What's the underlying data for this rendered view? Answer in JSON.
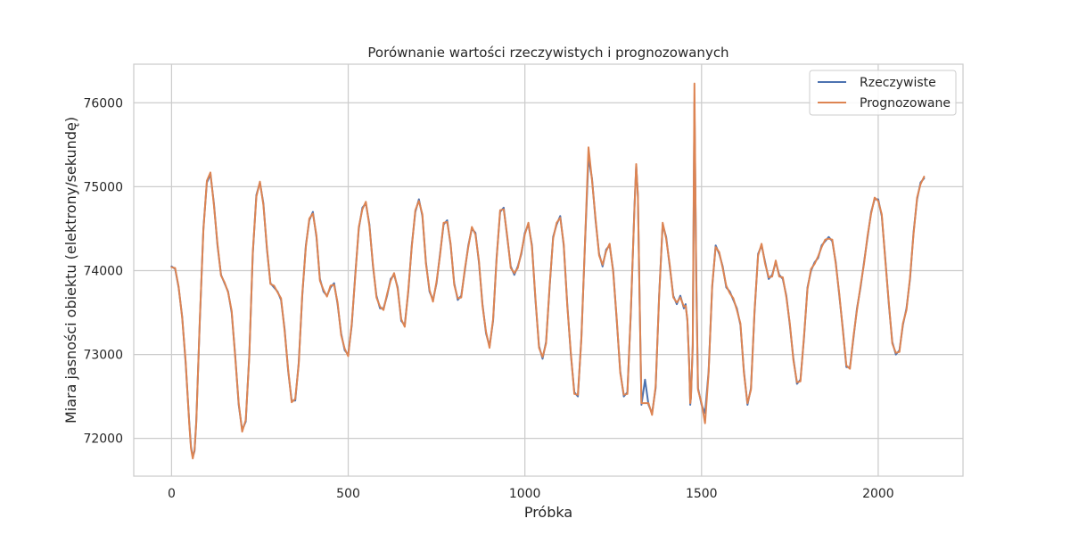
{
  "chart_data": {
    "type": "line",
    "title": "Porównanie wartości rzeczywistych i prognozowanych",
    "xlabel": "Próbka",
    "ylabel": "Miara jasności obiektu (elektrony/sekundę)",
    "xlim": [
      -107,
      2240
    ],
    "ylim": [
      71550,
      76460
    ],
    "xticks": [
      0,
      500,
      1000,
      1500,
      2000
    ],
    "xtick_labels": [
      "0",
      "500",
      "1000",
      "1500",
      "2000"
    ],
    "yticks": [
      72000,
      73000,
      74000,
      75000,
      76000
    ],
    "ytick_labels": [
      "72000",
      "73000",
      "74000",
      "75000",
      "76000"
    ],
    "grid": true,
    "legend_position": "top-right",
    "colors": {
      "actual": "#4c72b0",
      "predicted": "#dd8452",
      "grid": "#cccccc",
      "frame": "#cccccc"
    },
    "series": [
      {
        "name": "Rzeczywiste",
        "color": "#4c72b0",
        "x": [
          0,
          10,
          20,
          30,
          40,
          50,
          55,
          60,
          65,
          70,
          80,
          90,
          100,
          110,
          120,
          130,
          140,
          150,
          160,
          170,
          180,
          190,
          200,
          210,
          220,
          230,
          240,
          250,
          260,
          270,
          280,
          290,
          300,
          310,
          320,
          330,
          340,
          350,
          360,
          370,
          380,
          390,
          400,
          410,
          420,
          430,
          440,
          450,
          460,
          470,
          480,
          490,
          500,
          510,
          520,
          530,
          540,
          550,
          560,
          570,
          580,
          590,
          600,
          610,
          620,
          630,
          640,
          650,
          660,
          670,
          680,
          690,
          700,
          710,
          720,
          730,
          740,
          750,
          760,
          770,
          780,
          790,
          800,
          810,
          820,
          830,
          840,
          850,
          860,
          870,
          880,
          890,
          900,
          910,
          920,
          930,
          940,
          950,
          960,
          970,
          980,
          990,
          1000,
          1010,
          1020,
          1030,
          1040,
          1050,
          1060,
          1070,
          1080,
          1090,
          1100,
          1110,
          1120,
          1130,
          1140,
          1150,
          1160,
          1170,
          1180,
          1190,
          1200,
          1210,
          1220,
          1230,
          1240,
          1250,
          1260,
          1270,
          1280,
          1290,
          1300,
          1310,
          1315,
          1320,
          1325,
          1330,
          1340,
          1350,
          1360,
          1370,
          1380,
          1390,
          1400,
          1410,
          1420,
          1430,
          1440,
          1450,
          1455,
          1460,
          1465,
          1468,
          1470,
          1475,
          1480,
          1485,
          1490,
          1500,
          1510,
          1520,
          1530,
          1540,
          1550,
          1560,
          1570,
          1580,
          1590,
          1600,
          1610,
          1620,
          1630,
          1640,
          1650,
          1660,
          1670,
          1680,
          1690,
          1700,
          1710,
          1720,
          1730,
          1740,
          1750,
          1760,
          1770,
          1780,
          1790,
          1800,
          1810,
          1820,
          1830,
          1840,
          1850,
          1860,
          1870,
          1880,
          1890,
          1900,
          1910,
          1920,
          1930,
          1940,
          1950,
          1960,
          1970,
          1980,
          1990,
          2000,
          2010,
          2020,
          2030,
          2040,
          2050,
          2060,
          2070,
          2080,
          2090,
          2100,
          2110,
          2120,
          2130
        ],
        "y": [
          74050,
          74020,
          73800,
          73450,
          72900,
          72200,
          71900,
          71780,
          71850,
          72200,
          73400,
          74500,
          75050,
          75150,
          74800,
          74300,
          73950,
          73850,
          73750,
          73500,
          73000,
          72400,
          72100,
          72200,
          73000,
          74200,
          74900,
          75050,
          74800,
          74250,
          73850,
          73800,
          73750,
          73650,
          73300,
          72800,
          72450,
          72450,
          72900,
          73700,
          74300,
          74600,
          74700,
          74400,
          73900,
          73750,
          73700,
          73800,
          73850,
          73600,
          73250,
          73050,
          73000,
          73350,
          73950,
          74500,
          74750,
          74800,
          74550,
          74050,
          73700,
          73550,
          73550,
          73700,
          73900,
          73950,
          73800,
          73400,
          73350,
          73750,
          74300,
          74700,
          74850,
          74650,
          74100,
          73750,
          73650,
          73850,
          74200,
          74550,
          74600,
          74300,
          73850,
          73650,
          73700,
          74000,
          74300,
          74500,
          74450,
          74100,
          73600,
          73250,
          73100,
          73400,
          74150,
          74700,
          74750,
          74400,
          74050,
          73950,
          74050,
          74200,
          74450,
          74550,
          74300,
          73650,
          73100,
          72950,
          73150,
          73800,
          74400,
          74550,
          74650,
          74300,
          73600,
          73000,
          72550,
          72500,
          73200,
          74300,
          75350,
          75100,
          74600,
          74200,
          74050,
          74250,
          74300,
          74000,
          73400,
          72800,
          72500,
          72550,
          73500,
          74750,
          75250,
          74900,
          73600,
          72400,
          72700,
          72400,
          72300,
          72600,
          73700,
          74550,
          74400,
          74050,
          73700,
          73600,
          73700,
          73550,
          73600,
          73400,
          72900,
          72400,
          72500,
          73100,
          76000,
          74000,
          72600,
          72400,
          72300,
          72800,
          73800,
          74300,
          74200,
          74050,
          73800,
          73750,
          73650,
          73550,
          73350,
          72800,
          72400,
          72600,
          73500,
          74200,
          74300,
          74100,
          73900,
          73950,
          74100,
          73950,
          73900,
          73700,
          73350,
          72950,
          72650,
          72700,
          73200,
          73800,
          74000,
          74100,
          74150,
          74300,
          74350,
          74400,
          74350,
          74100,
          73700,
          73300,
          72850,
          72850,
          73200,
          73550,
          73800,
          74100,
          74400,
          74700,
          74850,
          74850,
          74650,
          74150,
          73600,
          73150,
          73000,
          73050,
          73350,
          73550,
          73900,
          74450,
          74850,
          75050,
          75100
        ]
      },
      {
        "name": "Prognozowane",
        "color": "#dd8452",
        "x": [
          0,
          10,
          20,
          30,
          40,
          50,
          55,
          60,
          65,
          70,
          80,
          90,
          100,
          110,
          120,
          130,
          140,
          150,
          160,
          170,
          180,
          190,
          200,
          210,
          220,
          230,
          240,
          250,
          260,
          270,
          280,
          290,
          300,
          310,
          320,
          330,
          340,
          350,
          360,
          370,
          380,
          390,
          400,
          410,
          420,
          430,
          440,
          450,
          460,
          470,
          480,
          490,
          500,
          510,
          520,
          530,
          540,
          550,
          560,
          570,
          580,
          590,
          600,
          610,
          620,
          630,
          640,
          650,
          660,
          670,
          680,
          690,
          700,
          710,
          720,
          730,
          740,
          750,
          760,
          770,
          780,
          790,
          800,
          810,
          820,
          830,
          840,
          850,
          860,
          870,
          880,
          890,
          900,
          910,
          920,
          930,
          940,
          950,
          960,
          970,
          980,
          990,
          1000,
          1010,
          1020,
          1030,
          1040,
          1050,
          1060,
          1070,
          1080,
          1090,
          1100,
          1110,
          1120,
          1130,
          1140,
          1150,
          1160,
          1170,
          1180,
          1190,
          1200,
          1210,
          1220,
          1230,
          1240,
          1250,
          1260,
          1270,
          1280,
          1290,
          1300,
          1310,
          1315,
          1320,
          1325,
          1330,
          1340,
          1350,
          1360,
          1370,
          1380,
          1390,
          1400,
          1410,
          1420,
          1430,
          1440,
          1450,
          1455,
          1460,
          1465,
          1468,
          1470,
          1475,
          1480,
          1485,
          1490,
          1500,
          1510,
          1520,
          1530,
          1540,
          1550,
          1560,
          1570,
          1580,
          1590,
          1600,
          1610,
          1620,
          1630,
          1640,
          1650,
          1660,
          1670,
          1680,
          1690,
          1700,
          1710,
          1720,
          1730,
          1740,
          1750,
          1760,
          1770,
          1780,
          1790,
          1800,
          1810,
          1820,
          1830,
          1840,
          1850,
          1860,
          1870,
          1880,
          1890,
          1900,
          1910,
          1920,
          1930,
          1940,
          1950,
          1960,
          1970,
          1980,
          1990,
          2000,
          2010,
          2020,
          2030,
          2040,
          2050,
          2060,
          2070,
          2080,
          2090,
          2100,
          2110,
          2120,
          2130
        ],
        "y": [
          74040,
          74030,
          73810,
          73440,
          72920,
          72180,
          71880,
          71760,
          71870,
          72180,
          73420,
          74480,
          75070,
          75170,
          74780,
          74320,
          73940,
          73860,
          73740,
          73520,
          72980,
          72420,
          72080,
          72220,
          72980,
          74220,
          74880,
          75060,
          74780,
          74270,
          73840,
          73820,
          73740,
          73670,
          73280,
          72820,
          72430,
          72470,
          72880,
          73720,
          74280,
          74620,
          74680,
          74420,
          73880,
          73770,
          73690,
          73820,
          73830,
          73620,
          73230,
          73070,
          72980,
          73370,
          73930,
          74520,
          74730,
          74820,
          74530,
          74070,
          73680,
          73570,
          73530,
          73720,
          73880,
          73970,
          73780,
          73420,
          73330,
          73770,
          74280,
          74720,
          74830,
          74670,
          74080,
          73770,
          73630,
          73870,
          74180,
          74570,
          74580,
          74320,
          73830,
          73670,
          73680,
          74020,
          74280,
          74520,
          74430,
          74120,
          73580,
          73270,
          73080,
          73420,
          74130,
          74720,
          74730,
          74420,
          74030,
          73970,
          74030,
          74220,
          74430,
          74570,
          74280,
          73670,
          73080,
          72970,
          73130,
          73820,
          74380,
          74570,
          74630,
          74320,
          73580,
          73020,
          72530,
          72520,
          73180,
          74320,
          75470,
          75080,
          74620,
          74180,
          74070,
          74230,
          74320,
          73980,
          73420,
          72780,
          72520,
          72530,
          73520,
          74730,
          75270,
          74880,
          73620,
          72420,
          72420,
          72420,
          72280,
          72620,
          73680,
          74570,
          74380,
          74070,
          73680,
          73620,
          73680,
          73570,
          73580,
          73420,
          72880,
          72420,
          72480,
          73120,
          76230,
          73900,
          72580,
          72420,
          72180,
          72780,
          73820,
          74280,
          74220,
          74030,
          73820,
          73730,
          73670,
          73530,
          73370,
          72780,
          72420,
          72580,
          73520,
          74180,
          74320,
          74080,
          73920,
          73930,
          74120,
          73930,
          73920,
          73680,
          73370,
          72930,
          72670,
          72680,
          73220,
          73780,
          74020,
          74080,
          74170,
          74280,
          74370,
          74380,
          74370,
          74080,
          73720,
          73280,
          72870,
          72830,
          73220,
          73530,
          73820,
          74080,
          74420,
          74680,
          74870,
          74830,
          74670,
          74130,
          73620,
          73130,
          73020,
          73030,
          73370,
          73530,
          73920,
          74430,
          74870,
          75030,
          75120
        ]
      }
    ]
  }
}
